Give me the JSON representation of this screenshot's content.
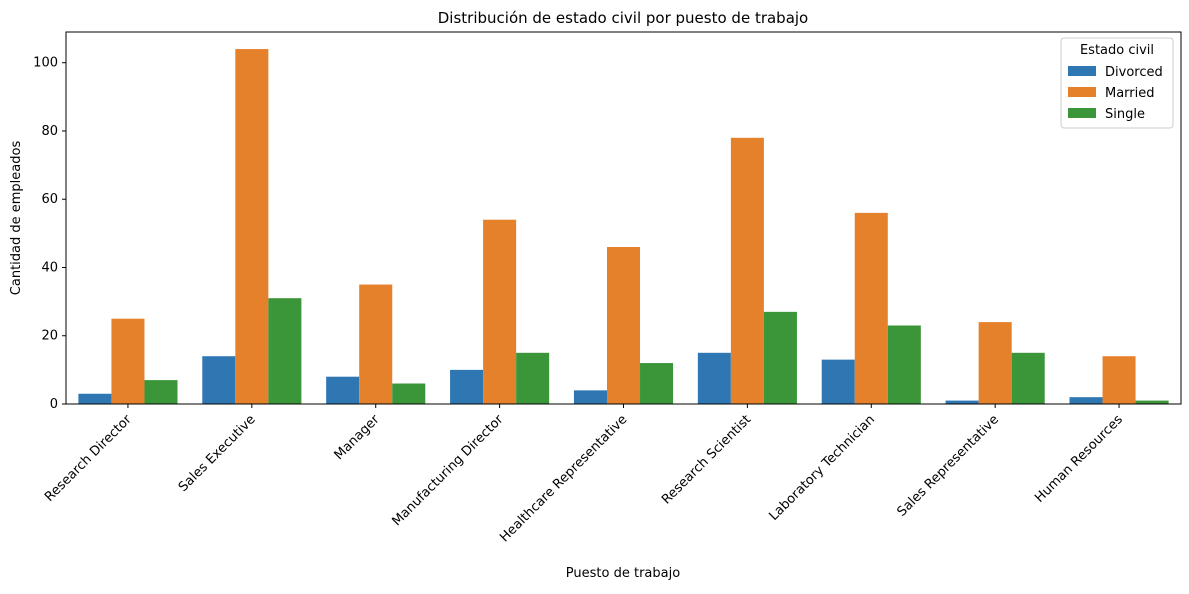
{
  "chart_data": {
    "type": "bar",
    "title": "Distribución de estado civil por puesto de trabajo",
    "xlabel": "Puesto de trabajo",
    "ylabel": "Cantidad de empleados",
    "ylim": [
      0,
      109
    ],
    "yticks": [
      0,
      20,
      40,
      60,
      80,
      100
    ],
    "grid": false,
    "legend": {
      "title": "Estado civil",
      "placement": "top-right"
    },
    "categories": [
      "Research Director",
      "Sales Executive",
      "Manager",
      "Manufacturing Director",
      "Healthcare Representative",
      "Research Scientist",
      "Laboratory Technician",
      "Sales Representative",
      "Human Resources"
    ],
    "series": [
      {
        "name": "Divorced",
        "color": "#2f77b3",
        "values": [
          3,
          14,
          8,
          10,
          4,
          15,
          13,
          1,
          2
        ]
      },
      {
        "name": "Married",
        "color": "#e6812b",
        "values": [
          25,
          104,
          35,
          54,
          46,
          78,
          56,
          24,
          14
        ]
      },
      {
        "name": "Single",
        "color": "#3b9639",
        "values": [
          7,
          31,
          6,
          15,
          12,
          27,
          23,
          15,
          1
        ]
      }
    ]
  }
}
